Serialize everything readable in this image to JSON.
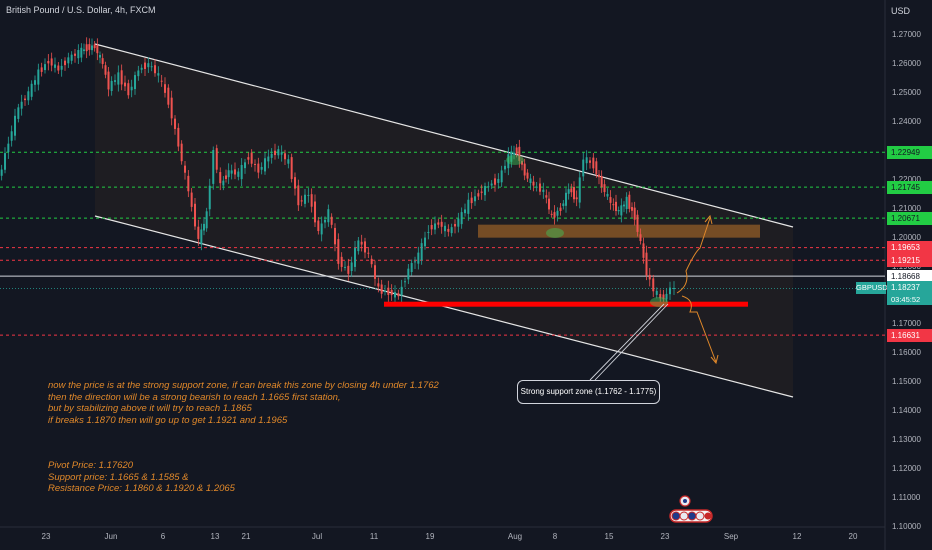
{
  "header": {
    "symbol_title": "British Pound / U.S. Dollar, 4h, FXCM",
    "currency": "USD"
  },
  "chart_data": {
    "type": "line",
    "title": "British Pound / U.S. Dollar, 4h, FXCM",
    "xlabel": "",
    "ylabel": "",
    "ylim": [
      1.095,
      1.279
    ],
    "y_ticks": [
      "1.27000",
      "1.26000",
      "1.25000",
      "1.24000",
      "1.23000",
      "1.22000",
      "1.21000",
      "1.20000",
      "1.19000",
      "1.18000",
      "1.17000",
      "1.16000",
      "1.15000",
      "1.14000",
      "1.13000",
      "1.12000",
      "1.11000",
      "1.10000"
    ],
    "x_ticks": [
      "23",
      "Jun",
      "6",
      "13",
      "21",
      "Jul",
      "11",
      "19",
      "Aug",
      "8",
      "15",
      "23",
      "Sep",
      "12",
      "20"
    ],
    "x_tick_pos": [
      46,
      111,
      163,
      215,
      246,
      317,
      374,
      430,
      515,
      555,
      609,
      665,
      731,
      797,
      853
    ],
    "price_path": [
      [
        0,
        1.22
      ],
      [
        10,
        1.233
      ],
      [
        20,
        1.245
      ],
      [
        30,
        1.25
      ],
      [
        40,
        1.257
      ],
      [
        50,
        1.261
      ],
      [
        60,
        1.258
      ],
      [
        70,
        1.262
      ],
      [
        80,
        1.264
      ],
      [
        88,
        1.2655
      ],
      [
        96,
        1.266
      ],
      [
        104,
        1.26
      ],
      [
        110,
        1.252
      ],
      [
        120,
        1.256
      ],
      [
        130,
        1.25
      ],
      [
        140,
        1.258
      ],
      [
        150,
        1.26
      ],
      [
        160,
        1.256
      ],
      [
        170,
        1.247
      ],
      [
        180,
        1.232
      ],
      [
        190,
        1.216
      ],
      [
        200,
        1.199
      ],
      [
        208,
        1.208
      ],
      [
        215,
        1.23
      ],
      [
        222,
        1.218
      ],
      [
        230,
        1.223
      ],
      [
        240,
        1.222
      ],
      [
        250,
        1.228
      ],
      [
        260,
        1.223
      ],
      [
        270,
        1.228
      ],
      [
        280,
        1.23
      ],
      [
        290,
        1.226
      ],
      [
        300,
        1.212
      ],
      [
        310,
        1.215
      ],
      [
        320,
        1.202
      ],
      [
        330,
        1.209
      ],
      [
        340,
        1.192
      ],
      [
        350,
        1.188
      ],
      [
        360,
        1.199
      ],
      [
        370,
        1.194
      ],
      [
        380,
        1.182
      ],
      [
        390,
        1.181
      ],
      [
        400,
        1.18
      ],
      [
        410,
        1.189
      ],
      [
        420,
        1.194
      ],
      [
        430,
        1.203
      ],
      [
        440,
        1.205
      ],
      [
        450,
        1.202
      ],
      [
        460,
        1.206
      ],
      [
        470,
        1.212
      ],
      [
        480,
        1.215
      ],
      [
        490,
        1.218
      ],
      [
        500,
        1.22
      ],
      [
        510,
        1.228
      ],
      [
        518,
        1.23
      ],
      [
        526,
        1.222
      ],
      [
        535,
        1.218
      ],
      [
        545,
        1.216
      ],
      [
        553,
        1.207
      ],
      [
        562,
        1.21
      ],
      [
        570,
        1.217
      ],
      [
        578,
        1.213
      ],
      [
        585,
        1.2275
      ],
      [
        595,
        1.225
      ],
      [
        603,
        1.218
      ],
      [
        612,
        1.212
      ],
      [
        620,
        1.209
      ],
      [
        628,
        1.213
      ],
      [
        636,
        1.207
      ],
      [
        642,
        1.198
      ],
      [
        648,
        1.188
      ],
      [
        655,
        1.182
      ],
      [
        662,
        1.179
      ],
      [
        668,
        1.18
      ],
      [
        672,
        1.183
      ],
      [
        676,
        1.1823
      ]
    ],
    "horizontal_levels": [
      {
        "price": 1.22949,
        "label": "1.22949",
        "color": "#22cc44",
        "style": "dashed"
      },
      {
        "price": 1.21745,
        "label": "1.21745",
        "color": "#22cc44",
        "style": "dashed"
      },
      {
        "price": 1.20671,
        "label": "1.20671",
        "color": "#22cc44",
        "style": "dashed"
      },
      {
        "price": 1.19653,
        "label": "1.19653",
        "color": "#f23645",
        "style": "dashed"
      },
      {
        "price": 1.19215,
        "label": "1.19215",
        "color": "#f23645",
        "style": "dashed"
      },
      {
        "price": 1.18668,
        "label": "1.18668",
        "color": "#d1d4dc",
        "style": "solid"
      },
      {
        "price": 1.16631,
        "label": "1.16631",
        "color": "#f23645",
        "style": "dashed"
      }
    ],
    "current": {
      "symbol": "GBPUSD",
      "price": "1.18237",
      "countdown": "03:45:52",
      "value": 1.18237
    },
    "support_zone": {
      "low": 1.1762,
      "high": 1.1775,
      "label": "Strong support zone (1.1762 - 1.1775)"
    },
    "resistance_zone": {
      "low": 1.2025,
      "high": 1.2055
    }
  },
  "annotations": {
    "analysis": [
      "now the price is at the strong support zone, if can break this zone by closing 4h under 1.1762",
      "then the direction will be a strong bearish to reach 1.1665 first station,",
      "but by stabilizing above it will try to reach 1.1865",
      "if breaks 1.1870 then will go up to get 1.1921 and 1.1965"
    ],
    "levels": [
      "Pivot Price: 1.17620",
      "Support price:  1.1665 & 1.1585 &",
      "Resistance Price: 1.1860 & 1.1920 & 1.2065"
    ]
  },
  "colors": {
    "bg": "#131722",
    "up": "#26a69a",
    "down": "#ef5350",
    "accent": "#e0882a"
  }
}
